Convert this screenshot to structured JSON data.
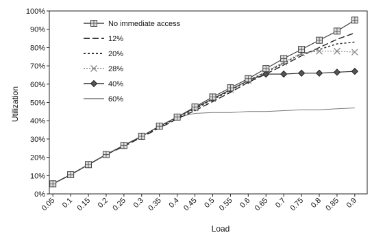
{
  "chart_data": {
    "type": "line",
    "title": "",
    "xlabel": "Load",
    "ylabel": "Utilization",
    "x": [
      0.05,
      0.1,
      0.15,
      0.2,
      0.25,
      0.3,
      0.35,
      0.4,
      0.45,
      0.5,
      0.55,
      0.6,
      0.65,
      0.7,
      0.75,
      0.8,
      0.85,
      0.9
    ],
    "x_tick_labels": [
      "0.05",
      "0.1",
      "0.15",
      "0.2",
      "0.25",
      "0.3",
      "0.35",
      "0.4",
      "0.45",
      "0.5",
      "0.55",
      "0.6",
      "0.65",
      "0.7",
      "0.75",
      "0.8",
      "0.85",
      "0.9"
    ],
    "ylim": [
      0,
      100
    ],
    "y_tick_labels": [
      "0%",
      "10%",
      "20%",
      "30%",
      "40%",
      "50%",
      "60%",
      "70%",
      "80%",
      "90%",
      "100%"
    ],
    "grid": false,
    "legend_position": "top-left",
    "series": [
      {
        "name": "No immediate access",
        "style": "solid-square-marker",
        "color": "#444444",
        "values": [
          5.5,
          10.5,
          16,
          21.5,
          26.5,
          31.5,
          37,
          42,
          47.5,
          53,
          58,
          63,
          68.5,
          74,
          79,
          84,
          89,
          95
        ]
      },
      {
        "name": "12%",
        "style": "long-dash",
        "color": "#222222",
        "values": [
          5.5,
          10.5,
          16,
          21.5,
          26,
          31,
          36,
          41,
          45.5,
          50.5,
          55.5,
          61,
          65.5,
          70.5,
          75.5,
          80,
          84.5,
          88
        ]
      },
      {
        "name": "20%",
        "style": "dot-dash",
        "color": "#333333",
        "values": [
          5.5,
          10.5,
          16,
          21.5,
          26.5,
          31.5,
          36.5,
          41.5,
          46.5,
          51.5,
          56.5,
          62,
          66.5,
          71.5,
          76.5,
          79,
          82,
          83
        ]
      },
      {
        "name": "28%",
        "style": "dotted-x-marker",
        "color": "#888888",
        "values": [
          5.5,
          10.5,
          16,
          21.5,
          26.5,
          31.5,
          37,
          42,
          47,
          52,
          57,
          62,
          67,
          72,
          77,
          78,
          78,
          77.5
        ]
      },
      {
        "name": "40%",
        "style": "solid-diamond-marker",
        "color": "#333333",
        "values": [
          5.5,
          10.5,
          16,
          21.5,
          26.5,
          31.5,
          37,
          42,
          47,
          52,
          57,
          62,
          65.5,
          65.5,
          66,
          66,
          66.5,
          67
        ]
      },
      {
        "name": "60%",
        "style": "thin-solid",
        "color": "#777777",
        "values": [
          5.5,
          10.5,
          16,
          21.5,
          26.5,
          31.5,
          37,
          42,
          44,
          44.5,
          44.5,
          45,
          45,
          45.5,
          46,
          46,
          46.5,
          47
        ]
      }
    ]
  }
}
